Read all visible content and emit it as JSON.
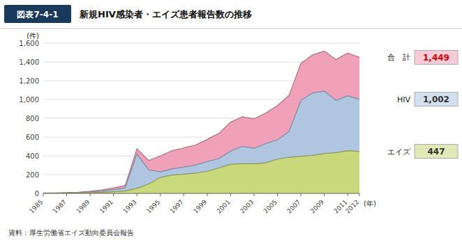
{
  "chart_data": {
    "type": "area",
    "title": "新規HIV感染者・エイズ患者報告数の推移",
    "ylabel": "(件)",
    "xlabel": "(年)",
    "x": [
      1985,
      1986,
      1987,
      1988,
      1989,
      1990,
      1991,
      1992,
      1993,
      1994,
      1995,
      1996,
      1997,
      1998,
      1999,
      2000,
      2001,
      2002,
      2003,
      2004,
      2005,
      2006,
      2007,
      2008,
      2009,
      2010,
      2011,
      2012
    ],
    "series": [
      {
        "name": "合　計",
        "color": "#f0a0b8",
        "values": [
          4,
          4,
          8,
          13,
          23,
          37,
          58,
          85,
          475,
          350,
          400,
          455,
          485,
          515,
          575,
          640,
          760,
          815,
          795,
          855,
          935,
          1045,
          1385,
          1475,
          1515,
          1425,
          1495,
          1449
        ]
      },
      {
        "name": "HIV",
        "color": "#aec6e0",
        "values": [
          3,
          2,
          5,
          8,
          15,
          25,
          40,
          60,
          420,
          250,
          230,
          260,
          280,
          300,
          340,
          370,
          450,
          500,
          480,
          530,
          570,
          660,
          990,
          1070,
          1090,
          990,
          1040,
          1002
        ]
      },
      {
        "name": "エイズ",
        "color": "#c8d87a",
        "values": [
          1,
          2,
          3,
          5,
          8,
          12,
          18,
          25,
          55,
          100,
          170,
          195,
          205,
          215,
          235,
          270,
          310,
          315,
          315,
          325,
          365,
          385,
          395,
          405,
          425,
          435,
          455,
          447
        ]
      }
    ],
    "xlim": [
      1985,
      2012
    ],
    "xticks": [
      1985,
      1987,
      1989,
      1991,
      1993,
      1995,
      1997,
      1999,
      2001,
      2003,
      2005,
      2007,
      2009,
      2011,
      2012
    ],
    "ylim": [
      0,
      1600
    ],
    "yticks": [
      0,
      200,
      400,
      600,
      800,
      {
        "value": 1000,
        "label": "1,000"
      },
      {
        "value": 1200,
        "label": "1,200"
      },
      {
        "value": 1400,
        "label": "1,400"
      },
      {
        "value": 1600,
        "label": "1,600"
      }
    ],
    "grid": true,
    "legend": "right",
    "annotations": [
      {
        "text": "図表7-4-1"
      },
      {
        "text": "1,449",
        "value": 1449,
        "color": "#cc0000"
      },
      {
        "text": "1,002",
        "value": 1002
      },
      {
        "text": "447",
        "value": 447
      },
      {
        "text": "資料：厚生労働省エイズ動向委員会報告"
      }
    ]
  }
}
